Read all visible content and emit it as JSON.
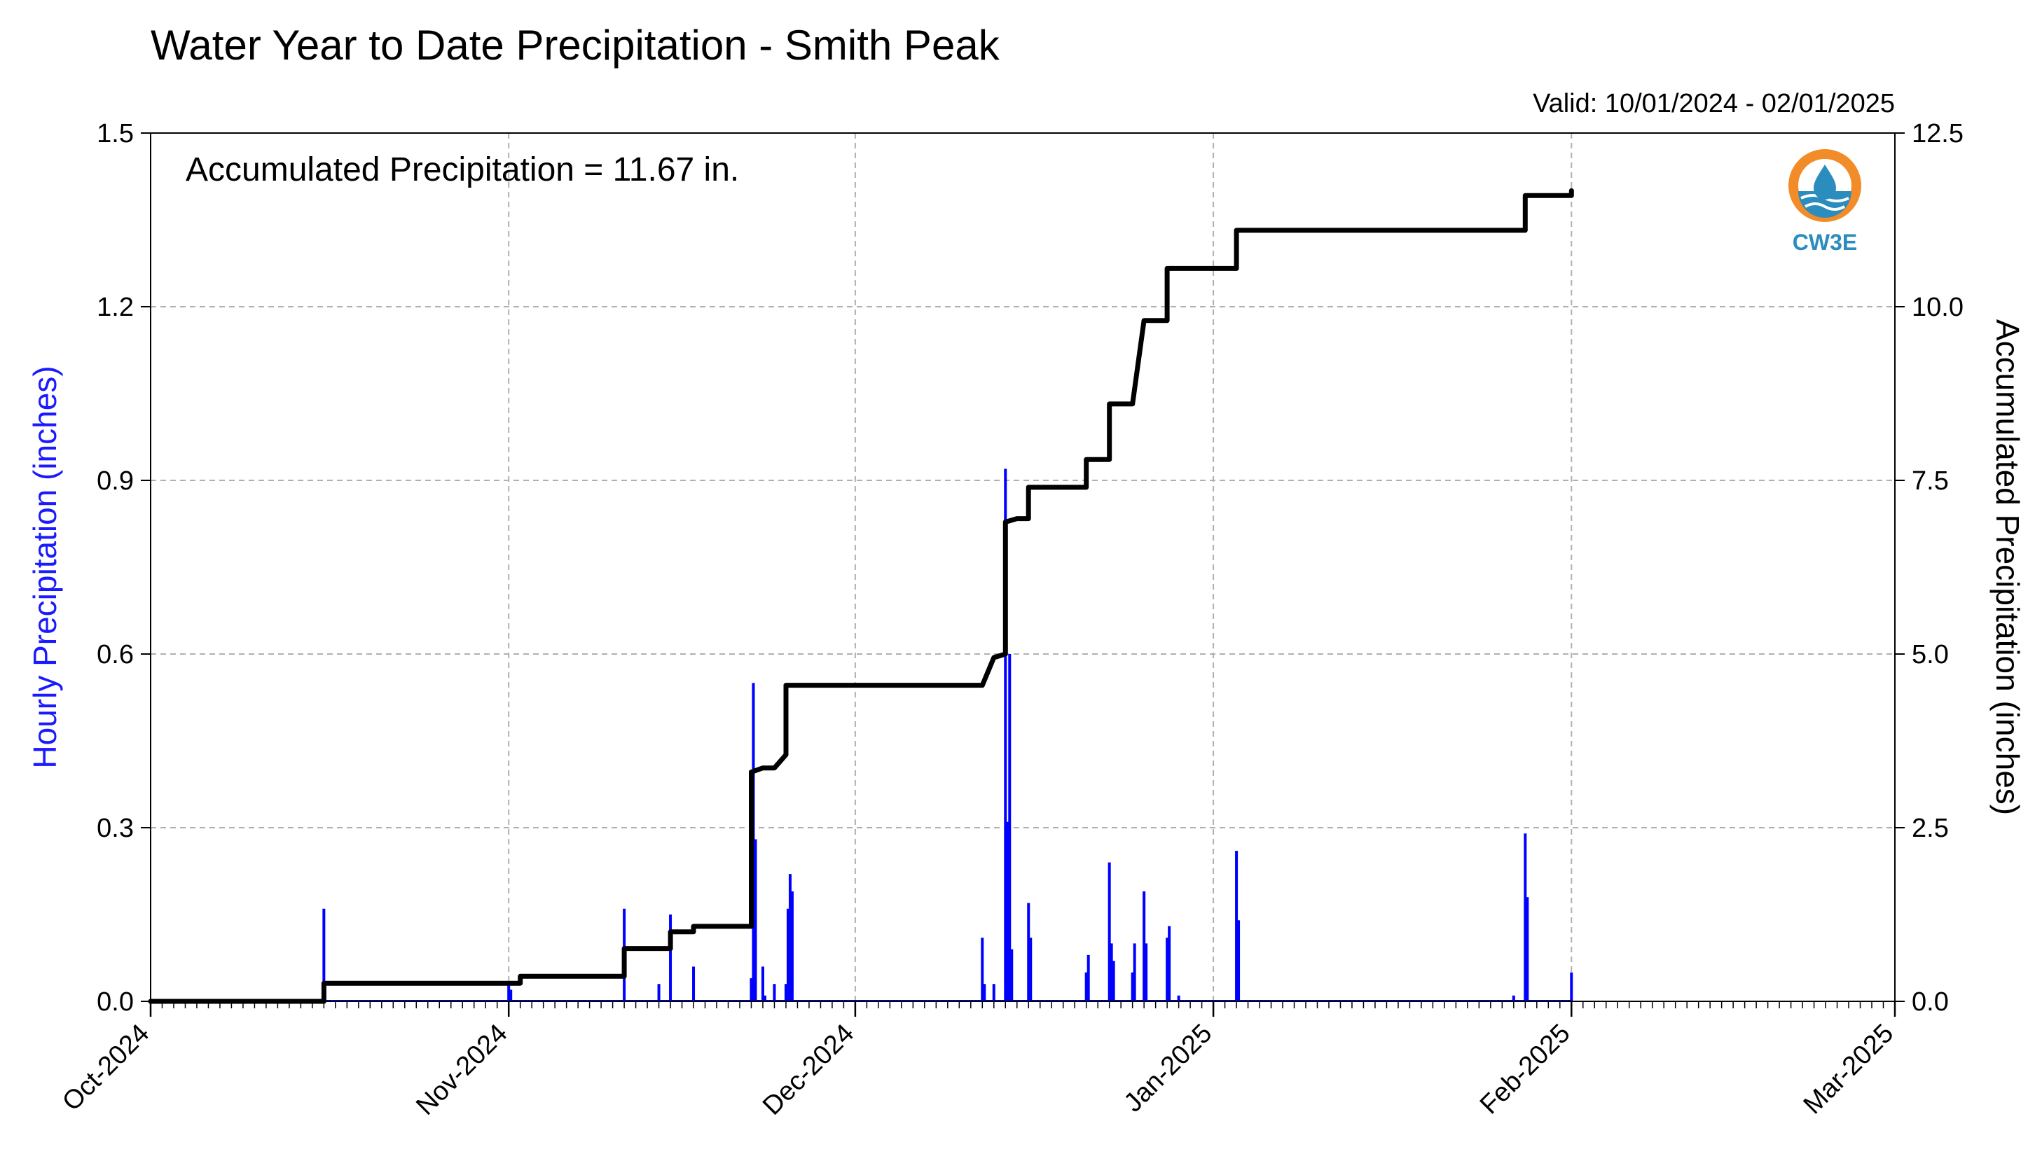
{
  "chart_data": {
    "type": "bar",
    "title": "Water Year to Date Precipitation - Smith Peak",
    "subtitle": "Valid: 10/01/2024 - 02/01/2025",
    "annotation": "Accumulated Precipitation = 11.67 in.",
    "logo_text": "CW3E",
    "ylabel_left": "Hourly Precipitation (inches)",
    "ylabel_right": "Accumulated Precipitation (inches)",
    "xlabel": "",
    "x_range": [
      "2024-10-01",
      "2025-03-01"
    ],
    "ylim_left": [
      0,
      1.5
    ],
    "ylim_right": [
      0,
      12.5
    ],
    "x_ticks": [
      "Oct-2024",
      "Nov-2024",
      "Dec-2024",
      "Jan-2025",
      "Feb-2025",
      "Mar-2025"
    ],
    "y_ticks_left": [
      "0.0",
      "0.3",
      "0.6",
      "0.9",
      "1.2",
      "1.5"
    ],
    "y_ticks_right": [
      "0.0",
      "2.5",
      "5.0",
      "7.5",
      "10.0",
      "12.5"
    ],
    "grid": true,
    "colors": {
      "hourly": "#0000ff",
      "accumulated": "#000000",
      "left_label": "#1a1aff"
    },
    "series": [
      {
        "name": "Hourly Precipitation",
        "type": "bar",
        "points": [
          [
            "2024-10-16",
            0.16
          ],
          [
            "2024-11-01",
            0.03
          ],
          [
            "2024-11-01",
            0.02
          ],
          [
            "2024-11-11",
            0.16
          ],
          [
            "2024-11-14",
            0.03
          ],
          [
            "2024-11-15",
            0.15
          ],
          [
            "2024-11-17",
            0.06
          ],
          [
            "2024-11-22",
            0.04
          ],
          [
            "2024-11-22",
            0.55
          ],
          [
            "2024-11-22",
            0.28
          ],
          [
            "2024-11-23",
            0.06
          ],
          [
            "2024-11-23",
            0.01
          ],
          [
            "2024-11-24",
            0.03
          ],
          [
            "2024-11-25",
            0.03
          ],
          [
            "2024-11-25",
            0.16
          ],
          [
            "2024-11-25",
            0.22
          ],
          [
            "2024-11-25",
            0.19
          ],
          [
            "2024-12-12",
            0.11
          ],
          [
            "2024-12-12",
            0.03
          ],
          [
            "2024-12-13",
            0.03
          ],
          [
            "2024-12-14",
            0.92
          ],
          [
            "2024-12-14",
            0.31
          ],
          [
            "2024-12-14",
            0.6
          ],
          [
            "2024-12-14",
            0.09
          ],
          [
            "2024-12-16",
            0.17
          ],
          [
            "2024-12-16",
            0.11
          ],
          [
            "2024-12-21",
            0.05
          ],
          [
            "2024-12-21",
            0.08
          ],
          [
            "2024-12-23",
            0.24
          ],
          [
            "2024-12-23",
            0.1
          ],
          [
            "2024-12-23",
            0.07
          ],
          [
            "2024-12-25",
            0.05
          ],
          [
            "2024-12-25",
            0.1
          ],
          [
            "2024-12-26",
            0.19
          ],
          [
            "2024-12-26",
            0.1
          ],
          [
            "2024-12-28",
            0.11
          ],
          [
            "2024-12-28",
            0.13
          ],
          [
            "2024-12-29",
            0.01
          ],
          [
            "2025-01-03",
            0.26
          ],
          [
            "2025-01-03",
            0.14
          ],
          [
            "2025-01-27",
            0.01
          ],
          [
            "2025-01-28",
            0.29
          ],
          [
            "2025-01-28",
            0.18
          ],
          [
            "2025-02-01",
            0.05
          ]
        ]
      },
      {
        "name": "Accumulated Precipitation",
        "type": "line",
        "points": [
          [
            "2024-10-01",
            0.0
          ],
          [
            "2024-10-16",
            0.0
          ],
          [
            "2024-10-16",
            0.26
          ],
          [
            "2024-11-02",
            0.26
          ],
          [
            "2024-11-02",
            0.36
          ],
          [
            "2024-11-11",
            0.36
          ],
          [
            "2024-11-11",
            0.76
          ],
          [
            "2024-11-15",
            0.76
          ],
          [
            "2024-11-15",
            1.0
          ],
          [
            "2024-11-17",
            1.0
          ],
          [
            "2024-11-17",
            1.08
          ],
          [
            "2024-11-22",
            1.08
          ],
          [
            "2024-11-22",
            3.3
          ],
          [
            "2024-11-23",
            3.36
          ],
          [
            "2024-11-24",
            3.36
          ],
          [
            "2024-11-25",
            3.55
          ],
          [
            "2024-11-25",
            4.55
          ],
          [
            "2024-12-12",
            4.55
          ],
          [
            "2024-12-13",
            4.95
          ],
          [
            "2024-12-14",
            5.0
          ],
          [
            "2024-12-14",
            6.9
          ],
          [
            "2024-12-15",
            6.95
          ],
          [
            "2024-12-16",
            6.95
          ],
          [
            "2024-12-16",
            7.4
          ],
          [
            "2024-12-21",
            7.4
          ],
          [
            "2024-12-21",
            7.8
          ],
          [
            "2024-12-23",
            7.8
          ],
          [
            "2024-12-23",
            8.6
          ],
          [
            "2024-12-25",
            8.6
          ],
          [
            "2024-12-26",
            9.8
          ],
          [
            "2024-12-28",
            9.8
          ],
          [
            "2024-12-28",
            10.55
          ],
          [
            "2025-01-03",
            10.55
          ],
          [
            "2025-01-03",
            11.1
          ],
          [
            "2025-01-28",
            11.1
          ],
          [
            "2025-01-28",
            11.6
          ],
          [
            "2025-02-01",
            11.6
          ],
          [
            "2025-02-01",
            11.67
          ]
        ]
      }
    ]
  }
}
